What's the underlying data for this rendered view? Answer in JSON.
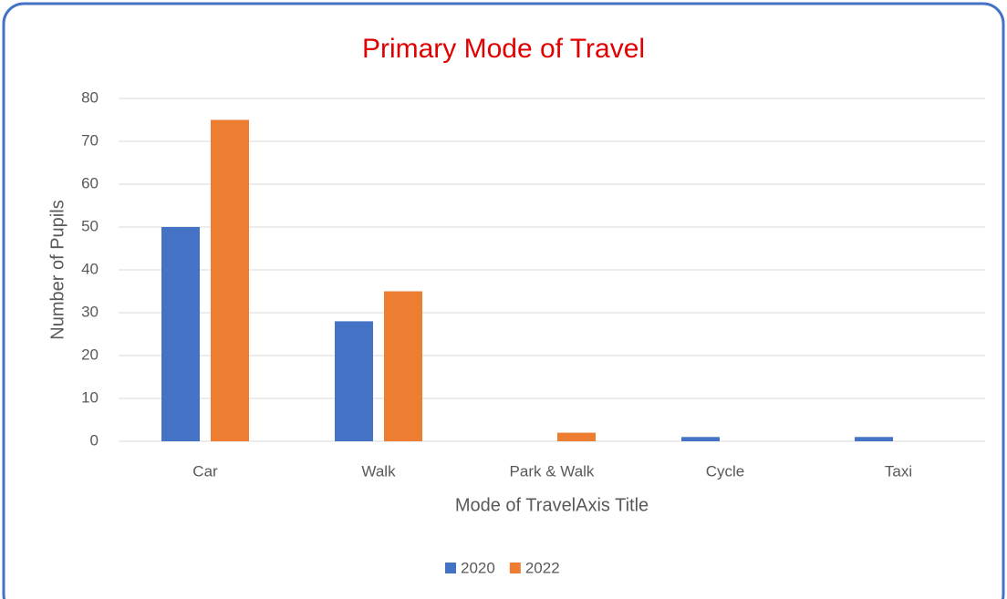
{
  "chart_data": {
    "type": "bar",
    "title": "Primary Mode of Travel",
    "x_label": "Mode of TravelAxis Title",
    "y_label": "Number of Pupils",
    "categories": [
      "Car",
      "Walk",
      "Park & Walk",
      "Cycle",
      "Taxi"
    ],
    "series": [
      {
        "name": "2020",
        "color": "#4472c4",
        "values": [
          50,
          28,
          0,
          1,
          1
        ]
      },
      {
        "name": "2022",
        "color": "#ed7d31",
        "values": [
          75,
          35,
          2,
          0,
          0
        ]
      }
    ],
    "ylim": [
      0,
      80
    ],
    "yticks": [
      0,
      10,
      20,
      30,
      40,
      50,
      60,
      70,
      80
    ],
    "grid": true,
    "legend": "bottom"
  }
}
